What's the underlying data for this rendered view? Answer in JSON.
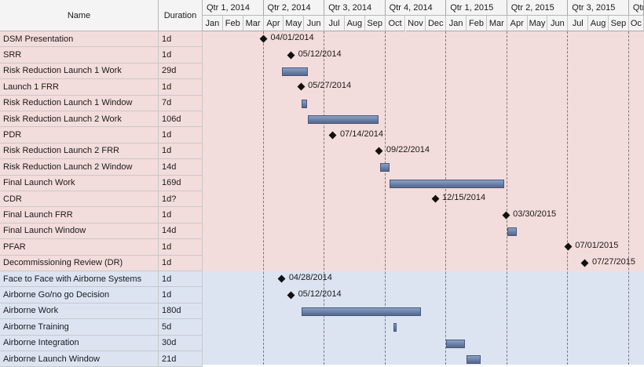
{
  "columns": {
    "name": "Name",
    "duration": "Duration"
  },
  "quarters": [
    "Qtr 1, 2014",
    "Qtr 2, 2014",
    "Qtr 3, 2014",
    "Qtr 4, 2014",
    "Qtr 1, 2015",
    "Qtr 2, 2015",
    "Qtr 3, 2015",
    "Qtr"
  ],
  "months": [
    "Jan",
    "Feb",
    "Mar",
    "Apr",
    "May",
    "Jun",
    "Jul",
    "Aug",
    "Sep",
    "Oct",
    "Nov",
    "Dec",
    "Jan",
    "Feb",
    "Mar",
    "Apr",
    "May",
    "Jun",
    "Jul",
    "Aug",
    "Sep",
    "Oc"
  ],
  "colors": {
    "group1": "#f3dcdc",
    "group2": "#dce4f1",
    "bar": "#6a7ea4",
    "milestone": "#111111"
  },
  "tasks": [
    {
      "name": "DSM Presentation",
      "duration": "1d",
      "group": 1,
      "type": "milestone",
      "start": "2014-04-01",
      "label": "04/01/2014"
    },
    {
      "name": "SRR",
      "duration": "1d",
      "group": 1,
      "type": "milestone",
      "start": "2014-05-12",
      "label": "05/12/2014"
    },
    {
      "name": "Risk Reduction Launch 1 Work",
      "duration": "29d",
      "group": 1,
      "type": "bar",
      "start": "2014-04-28",
      "end": "2014-06-06"
    },
    {
      "name": "Launch 1 FRR",
      "duration": "1d",
      "group": 1,
      "type": "milestone",
      "start": "2014-05-27",
      "label": "05/27/2014"
    },
    {
      "name": "Risk Reduction Launch 1 Window",
      "duration": "7d",
      "group": 1,
      "type": "bar",
      "start": "2014-05-28",
      "end": "2014-06-05"
    },
    {
      "name": "Risk Reduction Launch 2 Work",
      "duration": "106d",
      "group": 1,
      "type": "bar",
      "start": "2014-06-06",
      "end": "2014-09-21"
    },
    {
      "name": "PDR",
      "duration": "1d",
      "group": 1,
      "type": "milestone",
      "start": "2014-07-14",
      "label": "07/14/2014"
    },
    {
      "name": "Risk Reduction Launch 2 FRR",
      "duration": "1d",
      "group": 1,
      "type": "milestone",
      "start": "2014-09-22",
      "label": "09/22/2014"
    },
    {
      "name": "Risk Reduction Launch 2 Window",
      "duration": "14d",
      "group": 1,
      "type": "bar",
      "start": "2014-09-23",
      "end": "2014-10-08"
    },
    {
      "name": "Final Launch Work",
      "duration": "169d",
      "group": 1,
      "type": "bar",
      "start": "2014-10-08",
      "end": "2015-03-28"
    },
    {
      "name": "CDR",
      "duration": "1d?",
      "group": 1,
      "type": "milestone",
      "start": "2014-12-15",
      "label": "12/15/2014"
    },
    {
      "name": "Final Launch FRR",
      "duration": "1d",
      "group": 1,
      "type": "milestone",
      "start": "2015-03-30",
      "label": "03/30/2015"
    },
    {
      "name": "Final Launch Window",
      "duration": "14d",
      "group": 1,
      "type": "bar",
      "start": "2015-04-01",
      "end": "2015-04-15"
    },
    {
      "name": "PFAR",
      "duration": "1d",
      "group": 1,
      "type": "milestone",
      "start": "2015-07-01",
      "label": "07/01/2015"
    },
    {
      "name": "Decommissioning Review (DR)",
      "duration": "1d",
      "group": 1,
      "type": "milestone",
      "start": "2015-07-27",
      "label": "07/27/2015"
    },
    {
      "name": "Face to Face with Airborne Systems",
      "duration": "1d",
      "group": 2,
      "type": "milestone",
      "start": "2014-04-28",
      "label": "04/28/2014"
    },
    {
      "name": "Airborne Go/no go Decision",
      "duration": "1d",
      "group": 2,
      "type": "milestone",
      "start": "2014-05-12",
      "label": "05/12/2014"
    },
    {
      "name": "Airborne Work",
      "duration": "180d",
      "group": 2,
      "type": "bar",
      "start": "2014-05-28",
      "end": "2014-11-24"
    },
    {
      "name": "Airborne Training",
      "duration": "5d",
      "group": 2,
      "type": "bar",
      "start": "2014-10-14",
      "end": "2014-10-18"
    },
    {
      "name": "Airborne Integration",
      "duration": "30d",
      "group": 2,
      "type": "bar",
      "start": "2015-01-01",
      "end": "2015-01-30"
    },
    {
      "name": "Airborne Launch Window",
      "duration": "21d",
      "group": 2,
      "type": "bar",
      "start": "2015-02-01",
      "end": "2015-02-20"
    }
  ]
}
